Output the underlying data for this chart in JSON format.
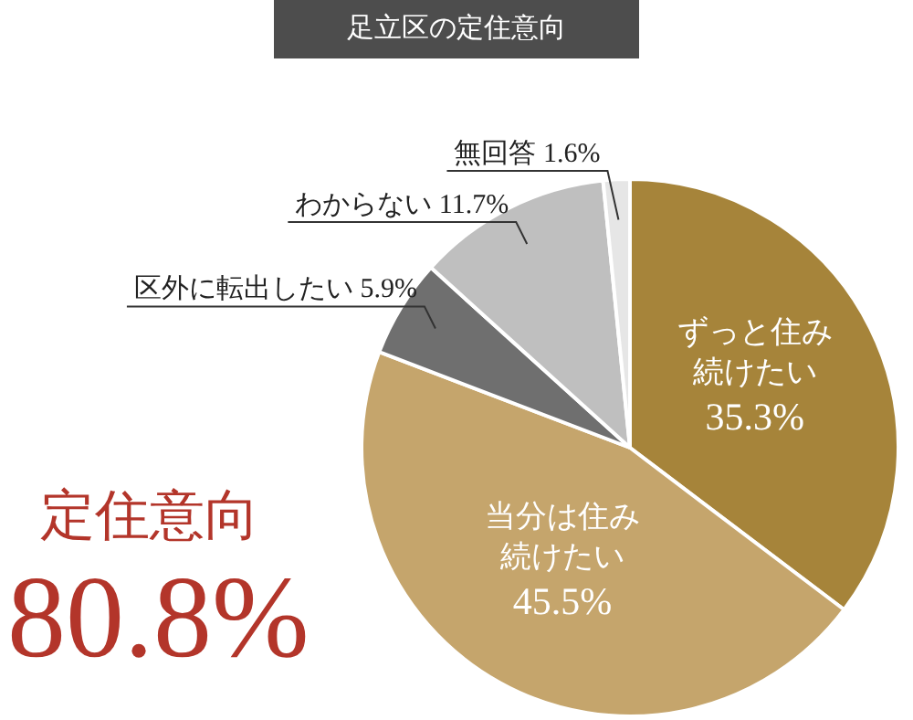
{
  "chart_data": {
    "type": "pie",
    "title": "足立区の定住意向",
    "categories": [
      "ずっと住み続けたい",
      "当分は住み続けたい",
      "区外に転出したい",
      "わからない",
      "無回答"
    ],
    "values": [
      35.3,
      45.5,
      5.9,
      11.7,
      1.6
    ],
    "value_labels": [
      "35.3%",
      "45.5%",
      "5.9%",
      "11.7%",
      "1.6%"
    ],
    "colors": [
      "#a6843a",
      "#c5a56c",
      "#6f6f6f",
      "#bfbfbf",
      "#e6e6e6"
    ],
    "annotations": [
      "定住意向",
      "80.8%"
    ],
    "legend": false
  }
}
